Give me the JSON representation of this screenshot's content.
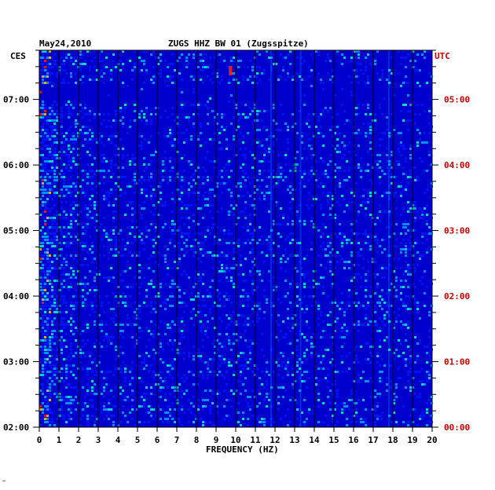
{
  "header": {
    "date": "May24,2010",
    "station": "ZUGS HHZ BW 01 (Zugsspitze)",
    "left_zone": "CES",
    "right_zone": "UTC"
  },
  "footer": {
    "corner_mark": "—"
  },
  "chart_data": {
    "type": "heatmap",
    "title": "ZUGS HHZ BW 01 (Zugsspitze)",
    "date": "May24,2010",
    "xlabel": "FREQUENCY (HZ)",
    "xlim": [
      0,
      20
    ],
    "x_ticks": [
      "0",
      "1",
      "2",
      "3",
      "4",
      "5",
      "6",
      "7",
      "8",
      "9",
      "10",
      "11",
      "12",
      "13",
      "14",
      "15",
      "16",
      "17",
      "18",
      "19",
      "20"
    ],
    "y_left_label": "CES",
    "y_left_ticks": [
      "07:00",
      "06:00",
      "05:00",
      "04:00",
      "03:00",
      "02:00"
    ],
    "y_right_label": "UTC",
    "y_right_ticks": [
      "05:00",
      "04:00",
      "03:00",
      "02:00",
      "01:00",
      "00:00"
    ],
    "y_hours_start": 2.0,
    "y_hours_end": 7.75,
    "colors": {
      "background": "#0000cc",
      "low": "#0018ff",
      "mid": "#00aaff",
      "high": "#00ffcc",
      "hot": "#ff2000",
      "right_axis": "#cc0000"
    }
  }
}
